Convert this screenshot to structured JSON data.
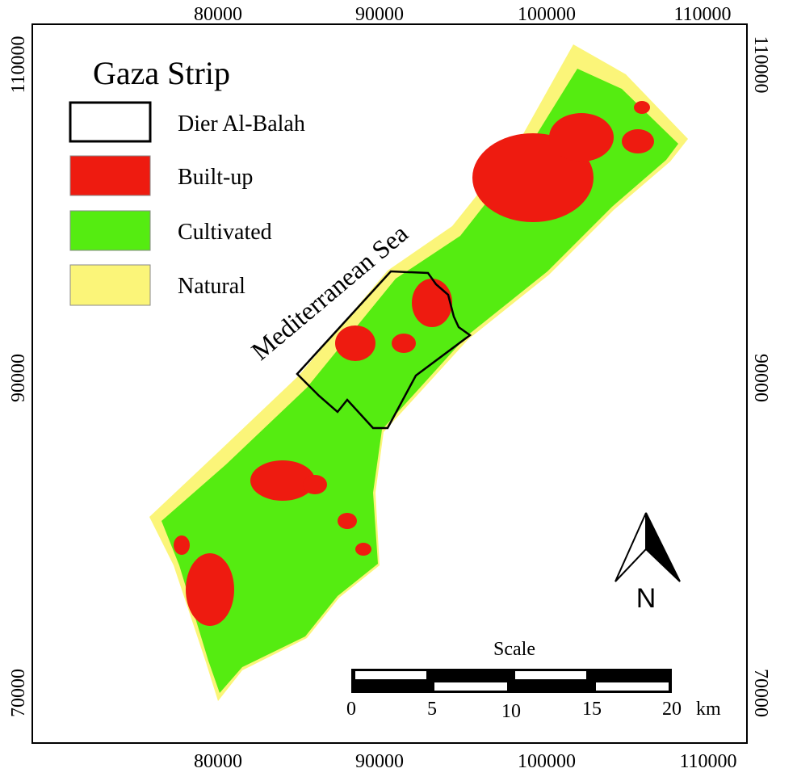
{
  "map": {
    "title": "Gaza Strip",
    "legend": [
      "Dier Al-Balah",
      "Built-up",
      "Cultivated",
      "Natural"
    ],
    "sea_label": "Mediterranean Sea",
    "x_ticks": [
      "80000",
      "90000",
      "100000",
      "110000"
    ],
    "y_ticks": [
      "110000",
      "90000",
      "70000"
    ],
    "scale": {
      "title": "Scale",
      "labels": [
        "0",
        "5",
        "10",
        "15",
        "20"
      ],
      "unit": "km"
    },
    "north": "N"
  }
}
